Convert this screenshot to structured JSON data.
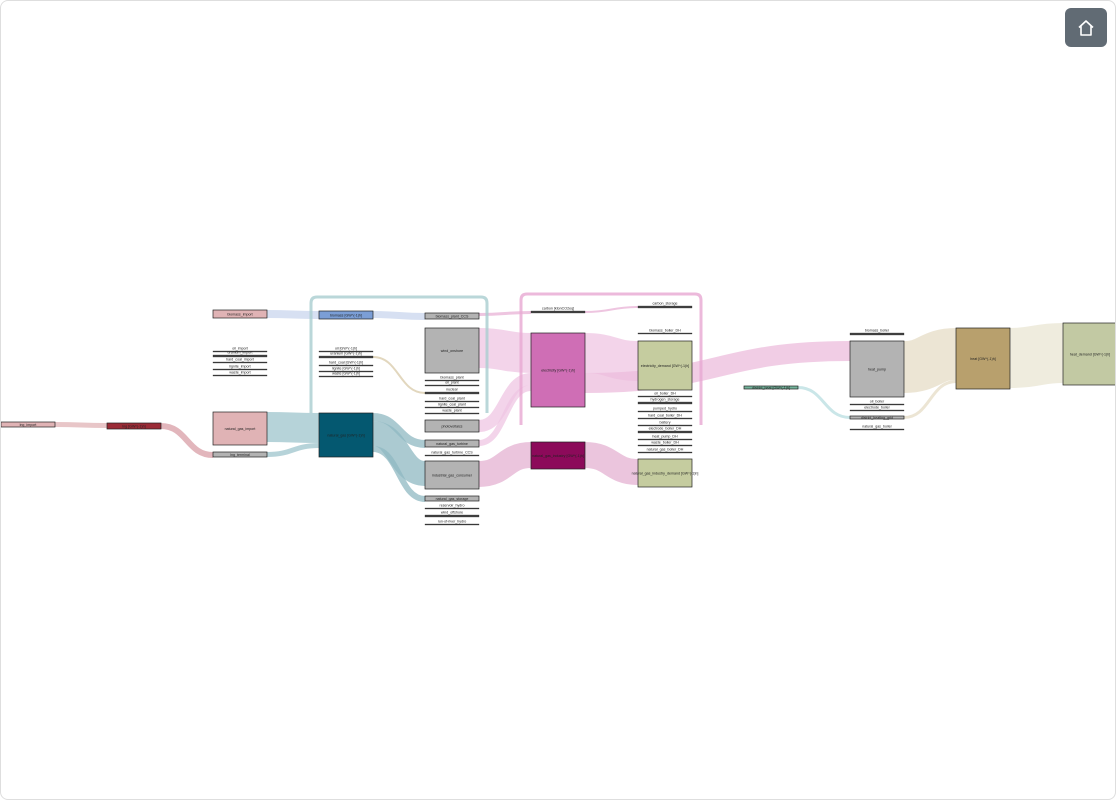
{
  "toolbar": {
    "home_icon": "home-icon"
  },
  "colors": {
    "wood": "#e0b3b5",
    "biomass": "#7b9ed6",
    "gray": "#b3b3b3",
    "natural_gas": "#045870",
    "electricity": "#cf6eb5",
    "ng_industry": "#8c0a5a",
    "demand": "#c5cc9f",
    "heat": "#b8a06d",
    "heat_demand": "#c2c9a3",
    "district": "#72b39b",
    "lng": "#9a2b36"
  },
  "nodes": [
    {
      "id": "lng_import",
      "label": "lng_import",
      "col": 0,
      "kind": "bar",
      "color": "wood"
    },
    {
      "id": "lng",
      "label": "lng [GW^(-1)h]",
      "col": 1,
      "kind": "bar",
      "color": "lng"
    },
    {
      "id": "biomass_import",
      "label": "biomass_import",
      "col": 2,
      "kind": "bar",
      "color": "wood"
    },
    {
      "id": "oil_import",
      "label": "oil_import",
      "col": 2,
      "kind": "line"
    },
    {
      "id": "uranium_import",
      "label": "uranium_import",
      "col": 2,
      "kind": "line"
    },
    {
      "id": "hard_coal_import",
      "label": "hard_coal_import",
      "col": 2,
      "kind": "line"
    },
    {
      "id": "lignite_import",
      "label": "lignite_import",
      "col": 2,
      "kind": "line"
    },
    {
      "id": "waste_import",
      "label": "waste_import",
      "col": 2,
      "kind": "line"
    },
    {
      "id": "natural_gas_import",
      "label": "natural_gas_import",
      "col": 2,
      "kind": "box",
      "color": "wood"
    },
    {
      "id": "lng_terminal",
      "label": "lng_terminal",
      "col": 2,
      "kind": "bar",
      "color": "gray"
    },
    {
      "id": "biomass",
      "label": "biomass [GW^(-1)h]",
      "col": 3,
      "kind": "bar",
      "color": "biomass"
    },
    {
      "id": "oil",
      "label": "oil [GW^(-1)h]",
      "col": 3,
      "kind": "line"
    },
    {
      "id": "uranium",
      "label": "uranium [GW^(-1)h]",
      "col": 3,
      "kind": "line"
    },
    {
      "id": "hard_coal",
      "label": "hard_coal [GW^(-1)h]",
      "col": 3,
      "kind": "line"
    },
    {
      "id": "lignite",
      "label": "lignite [GW^(-1)h]",
      "col": 3,
      "kind": "line"
    },
    {
      "id": "waste",
      "label": "waste [GW^(-1)h]",
      "col": 3,
      "kind": "line"
    },
    {
      "id": "natural_gas",
      "label": "natural_gas [GW^(-1)h]",
      "col": 3,
      "kind": "box",
      "color": "natural_gas"
    },
    {
      "id": "biomass_plant_CCS",
      "label": "biomass_plant_CCS",
      "col": 4,
      "kind": "bar",
      "color": "gray"
    },
    {
      "id": "wind_onshore",
      "label": "wind_onshore",
      "col": 4,
      "kind": "box",
      "color": "gray"
    },
    {
      "id": "biomass_plant",
      "label": "biomass_plant",
      "col": 4,
      "kind": "line"
    },
    {
      "id": "oil_plant",
      "label": "oil_plant",
      "col": 4,
      "kind": "line"
    },
    {
      "id": "nuclear",
      "label": "nuclear",
      "col": 4,
      "kind": "line"
    },
    {
      "id": "hard_coal_plant",
      "label": "hard_coal_plant",
      "col": 4,
      "kind": "line"
    },
    {
      "id": "lignite_coal_plant",
      "label": "lignite_coal_plant",
      "col": 4,
      "kind": "line"
    },
    {
      "id": "waste_plant",
      "label": "waste_plant",
      "col": 4,
      "kind": "line"
    },
    {
      "id": "photovoltaics",
      "label": "photovoltaics",
      "col": 4,
      "kind": "box",
      "color": "gray"
    },
    {
      "id": "natural_gas_turbine",
      "label": "natural_gas_turbine",
      "col": 4,
      "kind": "bar",
      "color": "gray"
    },
    {
      "id": "natural_gas_turbine_CCS",
      "label": "natural_gas_turbine_CCS",
      "col": 4,
      "kind": "line"
    },
    {
      "id": "industrial_gas_consumer",
      "label": "industrial_gas_consumer",
      "col": 4,
      "kind": "box",
      "color": "gray"
    },
    {
      "id": "natural_gas_storage",
      "label": "natural_gas_storage",
      "col": 4,
      "kind": "bar",
      "color": "gray"
    },
    {
      "id": "reservoir_hydro",
      "label": "reservoir_hydro",
      "col": 4,
      "kind": "line"
    },
    {
      "id": "wind_offshore",
      "label": "wind_offshore",
      "col": 4,
      "kind": "line"
    },
    {
      "id": "run-of-river_hydro",
      "label": "run-of-river_hydro",
      "col": 4,
      "kind": "line"
    },
    {
      "id": "carbon",
      "label": "carbon [ktonCO2eq]",
      "col": 5,
      "kind": "line"
    },
    {
      "id": "electricity",
      "label": "electricity [GW^(-1)h]",
      "col": 5,
      "kind": "box",
      "color": "electricity"
    },
    {
      "id": "natural_gas_industry",
      "label": "natural_gas_industry [GW^(-1)h]",
      "col": 5,
      "kind": "box",
      "color": "ng_industry"
    },
    {
      "id": "carbon_storage",
      "label": "carbon_storage",
      "col": 6,
      "kind": "line"
    },
    {
      "id": "biomass_boiler_DH",
      "label": "biomass_boiler_DH",
      "col": 6,
      "kind": "line"
    },
    {
      "id": "electricity_demand",
      "label": "electricity_demand [GW^(-1)h]",
      "col": 6,
      "kind": "box",
      "color": "demand"
    },
    {
      "id": "oil_boiler_DH",
      "label": "oil_boiler_DH",
      "col": 6,
      "kind": "line"
    },
    {
      "id": "hydrogen_storage",
      "label": "hydrogen_storage",
      "col": 6,
      "kind": "line"
    },
    {
      "id": "pumped_hydro",
      "label": "pumped_hydro",
      "col": 6,
      "kind": "line"
    },
    {
      "id": "hard_coal_boiler_DH",
      "label": "hard_coal_boiler_DH",
      "col": 6,
      "kind": "line"
    },
    {
      "id": "battery",
      "label": "battery",
      "col": 6,
      "kind": "line"
    },
    {
      "id": "electrode_boiler_DH",
      "label": "electrode_boiler_DH",
      "col": 6,
      "kind": "line"
    },
    {
      "id": "heat_pump_DH",
      "label": "heat_pump_DH",
      "col": 6,
      "kind": "line"
    },
    {
      "id": "waste_boiler_DH",
      "label": "waste_boiler_DH",
      "col": 6,
      "kind": "line"
    },
    {
      "id": "natural_gas_boiler_DH",
      "label": "natural_gas_boiler_DH",
      "col": 6,
      "kind": "line"
    },
    {
      "id": "natural_gas_industry_demand",
      "label": "natural_gas_industry_demand [GW^(-1)h]",
      "col": 6,
      "kind": "box",
      "color": "demand"
    },
    {
      "id": "district_heat",
      "label": "district_heat [GW^(-1)h]",
      "col": 7,
      "kind": "bar",
      "color": "district"
    },
    {
      "id": "biomass_boiler",
      "label": "biomass_boiler",
      "col": 8,
      "kind": "line"
    },
    {
      "id": "heat_pump",
      "label": "heat_pump",
      "col": 8,
      "kind": "box",
      "color": "gray"
    },
    {
      "id": "oil_boiler",
      "label": "oil_boiler",
      "col": 8,
      "kind": "line"
    },
    {
      "id": "electrode_boiler",
      "label": "electrode_boiler",
      "col": 8,
      "kind": "line"
    },
    {
      "id": "district_heating_grid",
      "label": "district_heating_grid",
      "col": 8,
      "kind": "bar",
      "color": "gray"
    },
    {
      "id": "natural_gas_boiler",
      "label": "natural_gas_boiler",
      "col": 8,
      "kind": "line"
    },
    {
      "id": "heat",
      "label": "heat [GW^(-1)h]",
      "col": 9,
      "kind": "box",
      "color": "heat"
    },
    {
      "id": "heat_demand",
      "label": "heat_demand [GW^(-1)h]",
      "col": 10,
      "kind": "box",
      "color": "heat_demand"
    }
  ],
  "links": [
    {
      "source": "lng_import",
      "target": "lng",
      "color": "#e0b3b5"
    },
    {
      "source": "lng",
      "target": "lng_terminal",
      "color": "#d89ea5"
    },
    {
      "source": "natural_gas_import",
      "target": "natural_gas",
      "color": "#9ec4cc"
    },
    {
      "source": "lng_terminal",
      "target": "natural_gas",
      "color": "#9ec4cc"
    },
    {
      "source": "biomass_import",
      "target": "biomass",
      "color": "#c9d5ee"
    },
    {
      "source": "biomass",
      "target": "biomass_plant_CCS",
      "color": "#c9d5ee"
    },
    {
      "source": "uranium",
      "target": "nuclear",
      "color": "#d8c9a8"
    },
    {
      "source": "natural_gas",
      "target": "natural_gas_turbine",
      "color": "#8fb8c2"
    },
    {
      "source": "natural_gas",
      "target": "industrial_gas_consumer",
      "color": "#8fb8c2"
    },
    {
      "source": "natural_gas",
      "target": "natural_gas_storage",
      "color": "#8fb8c2"
    },
    {
      "source": "wind_onshore",
      "target": "electricity",
      "color": "#efc6e3"
    },
    {
      "source": "photovoltaics",
      "target": "electricity",
      "color": "#efc6e3"
    },
    {
      "source": "natural_gas_turbine",
      "target": "electricity",
      "color": "#efc6e3"
    },
    {
      "source": "industrial_gas_consumer",
      "target": "natural_gas_industry",
      "color": "#e4b1d1"
    },
    {
      "source": "electricity",
      "target": "electricity_demand",
      "color": "#efc6e3"
    },
    {
      "source": "electricity",
      "target": "heat_pump",
      "color": "#ecbcdc"
    },
    {
      "source": "natural_gas_industry",
      "target": "natural_gas_industry_demand",
      "color": "#e4b1d1"
    },
    {
      "source": "biomass_plant_CCS",
      "target": "carbon",
      "color": "#e8b2d6"
    },
    {
      "source": "carbon",
      "target": "carbon_storage",
      "color": "#e8b2d6"
    },
    {
      "source": "heat_pump",
      "target": "heat",
      "color": "#e5dcc5"
    },
    {
      "source": "district_heating_grid",
      "target": "heat",
      "color": "#e5dcc5"
    },
    {
      "source": "heat",
      "target": "heat_demand",
      "color": "#e9e5d3"
    },
    {
      "source": "district_heat",
      "target": "district_heating_grid",
      "color": "#b8dde0"
    }
  ]
}
